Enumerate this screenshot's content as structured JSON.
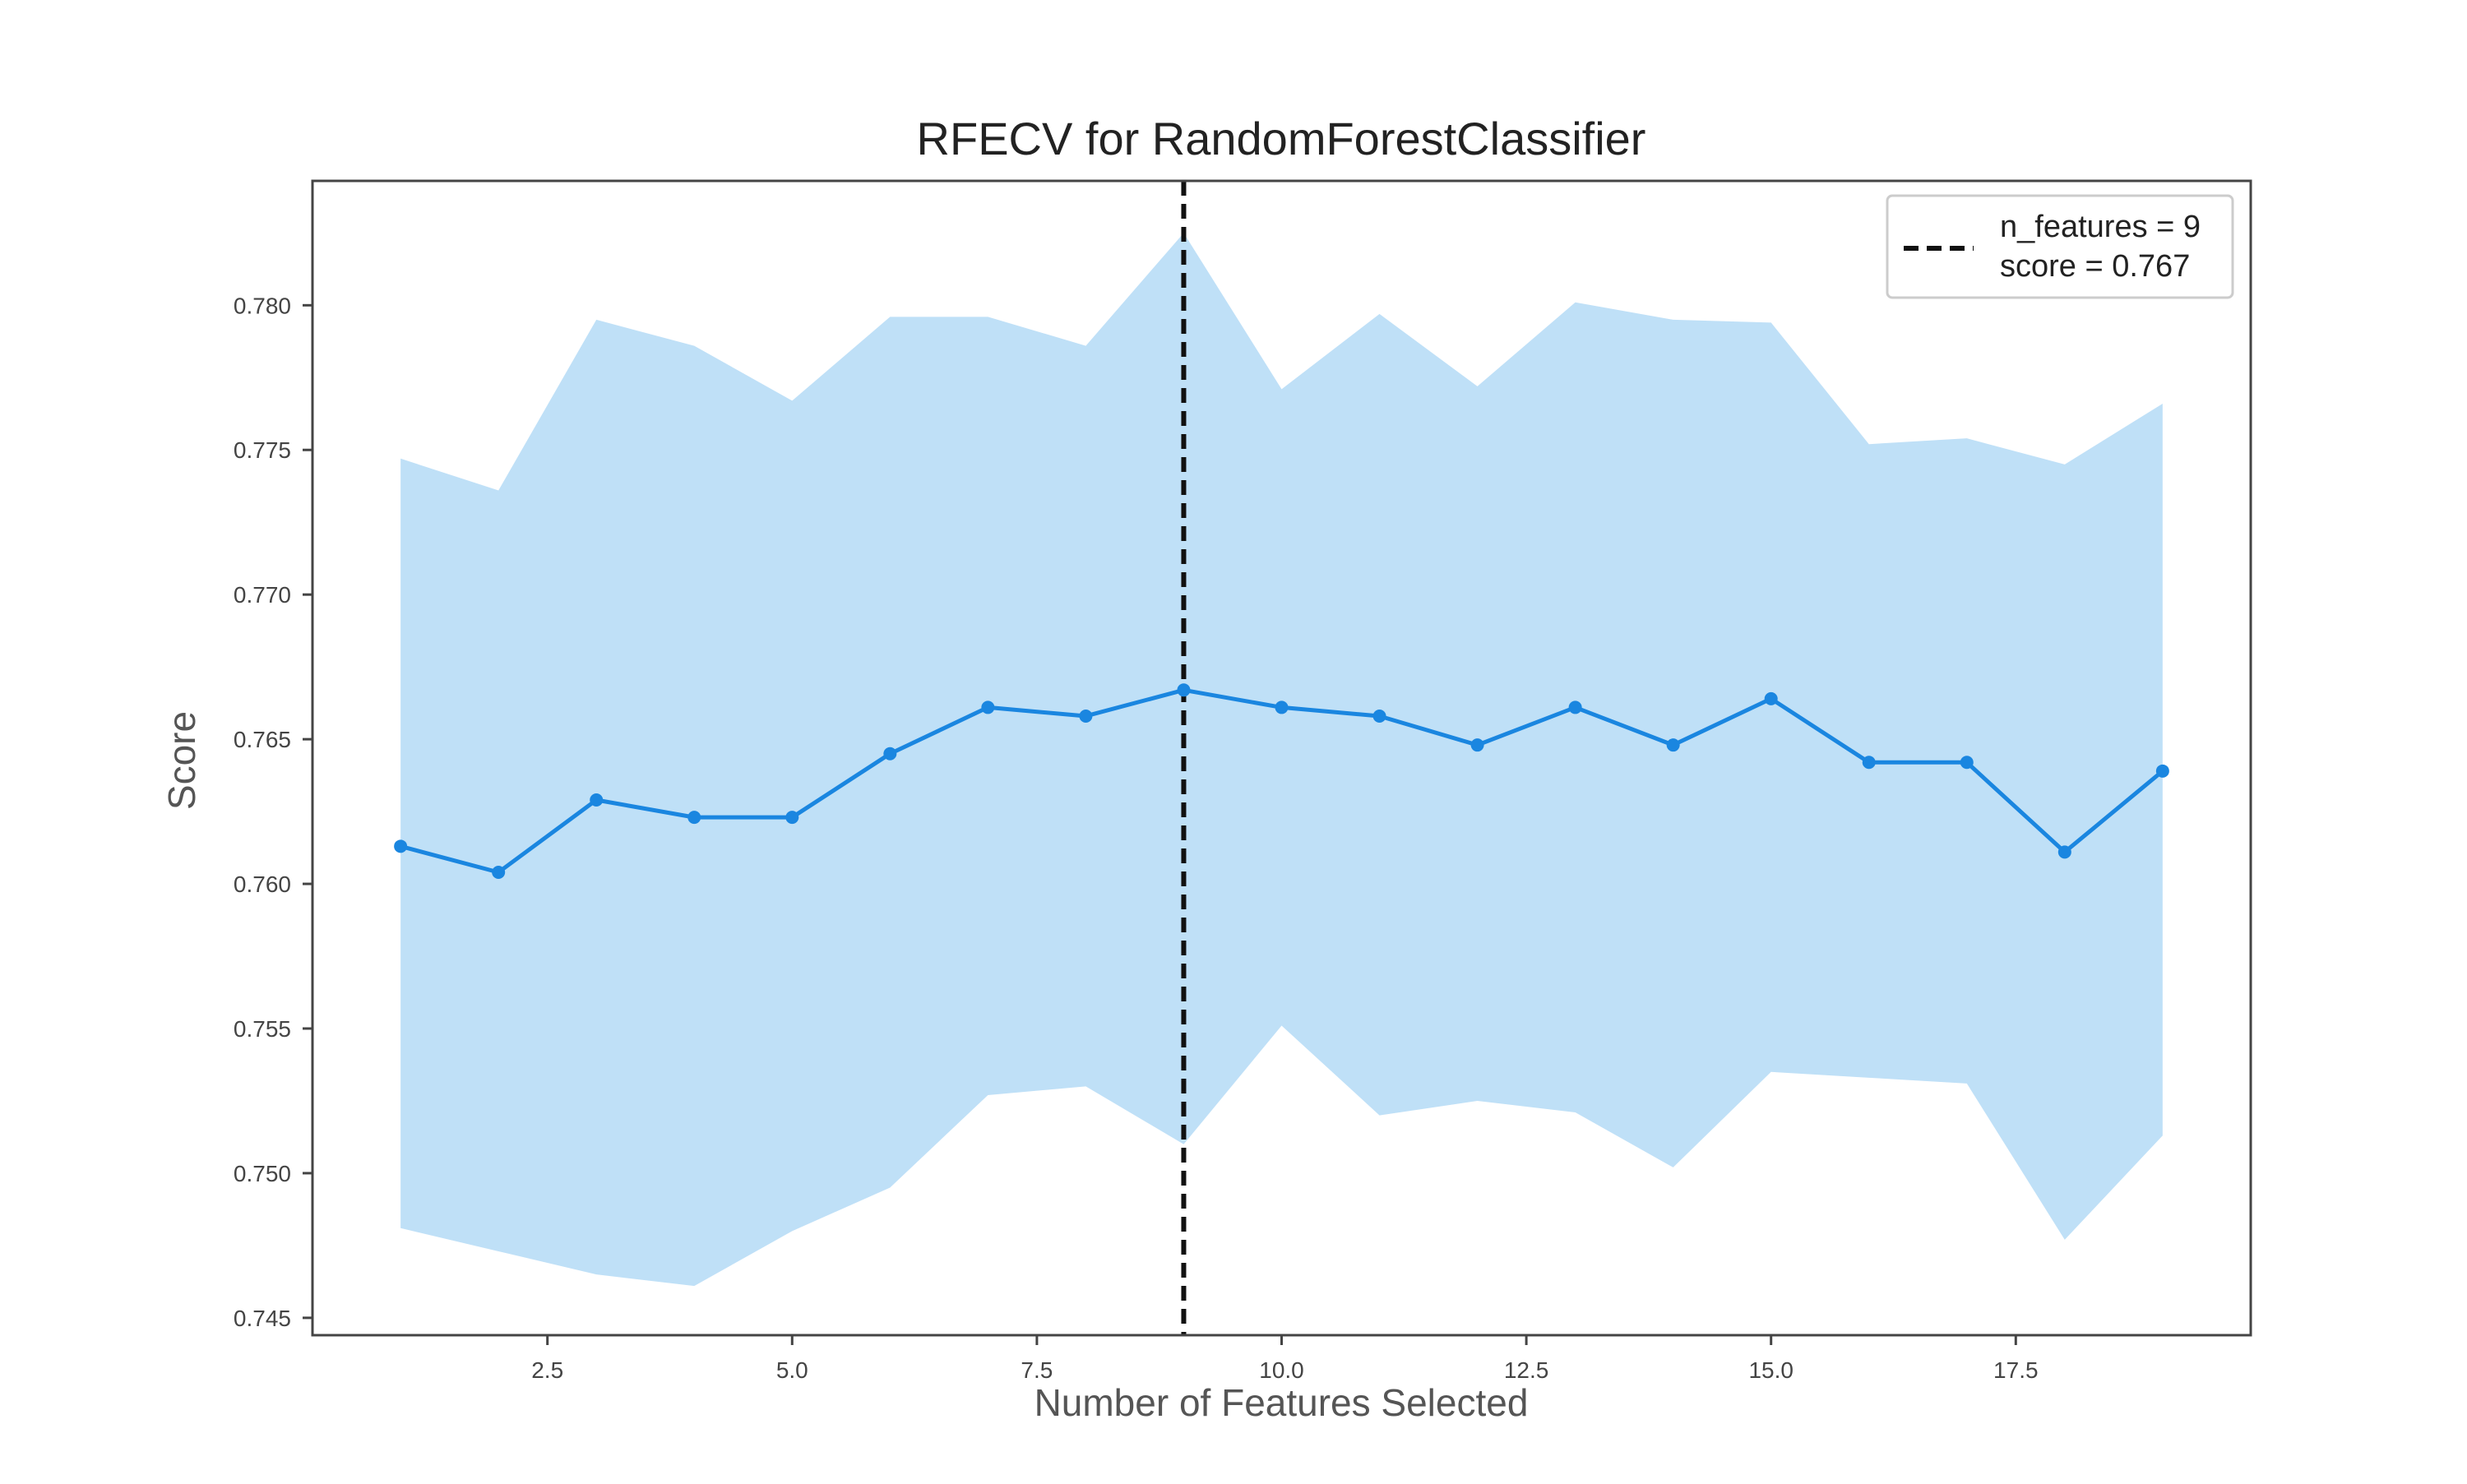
{
  "chart_data": {
    "type": "line",
    "title": "RFECV for RandomForestClassifier",
    "xlabel": "Number of Features Selected",
    "ylabel": "Score",
    "xlim": [
      0.1,
      19.9
    ],
    "ylim": [
      0.7444,
      0.7843
    ],
    "x_ticks": [
      {
        "value": 2.5,
        "label": "2.5"
      },
      {
        "value": 5.0,
        "label": "5.0"
      },
      {
        "value": 7.5,
        "label": "7.5"
      },
      {
        "value": 10.0,
        "label": "10.0"
      },
      {
        "value": 12.5,
        "label": "12.5"
      },
      {
        "value": 15.0,
        "label": "15.0"
      },
      {
        "value": 17.5,
        "label": "17.5"
      }
    ],
    "y_ticks": [
      {
        "value": 0.745,
        "label": "0.745"
      },
      {
        "value": 0.75,
        "label": "0.750"
      },
      {
        "value": 0.755,
        "label": "0.755"
      },
      {
        "value": 0.76,
        "label": "0.760"
      },
      {
        "value": 0.765,
        "label": "0.765"
      },
      {
        "value": 0.77,
        "label": "0.770"
      },
      {
        "value": 0.775,
        "label": "0.775"
      },
      {
        "value": 0.78,
        "label": "0.780"
      }
    ],
    "grid": false,
    "legend_position": "top-right",
    "x": [
      1,
      2,
      3,
      4,
      5,
      6,
      7,
      8,
      9,
      10,
      11,
      12,
      13,
      14,
      15,
      16,
      17,
      18,
      19
    ],
    "series": [
      {
        "values": [
          0.7613,
          0.7604,
          0.7629,
          0.7623,
          0.7623,
          0.7645,
          0.7661,
          0.7658,
          0.7667,
          0.7661,
          0.7658,
          0.7648,
          0.7661,
          0.7648,
          0.7664,
          0.7642,
          0.7642,
          0.7611,
          0.7639
        ],
        "upper": [
          0.7747,
          0.7736,
          0.7795,
          0.7786,
          0.7767,
          0.7796,
          0.7796,
          0.7786,
          0.7825,
          0.7771,
          0.7797,
          0.7772,
          0.7801,
          0.7795,
          0.7794,
          0.7752,
          0.7754,
          0.7745,
          0.7766
        ],
        "lower": [
          0.7481,
          0.7473,
          0.7465,
          0.7461,
          0.748,
          0.7495,
          0.7527,
          0.753,
          0.751,
          0.7551,
          0.752,
          0.7525,
          0.7521,
          0.7502,
          0.7535,
          0.7533,
          0.7531,
          0.7477,
          0.7513
        ]
      }
    ],
    "selected": {
      "x": 9,
      "score": 0.767
    },
    "legend": {
      "line1": "n_features = 9",
      "line2": "score = 0.767"
    },
    "colors": {
      "line": "#1a86e0",
      "band": "#bfe0f7",
      "vline": "#111111",
      "axes": "#444444"
    }
  }
}
